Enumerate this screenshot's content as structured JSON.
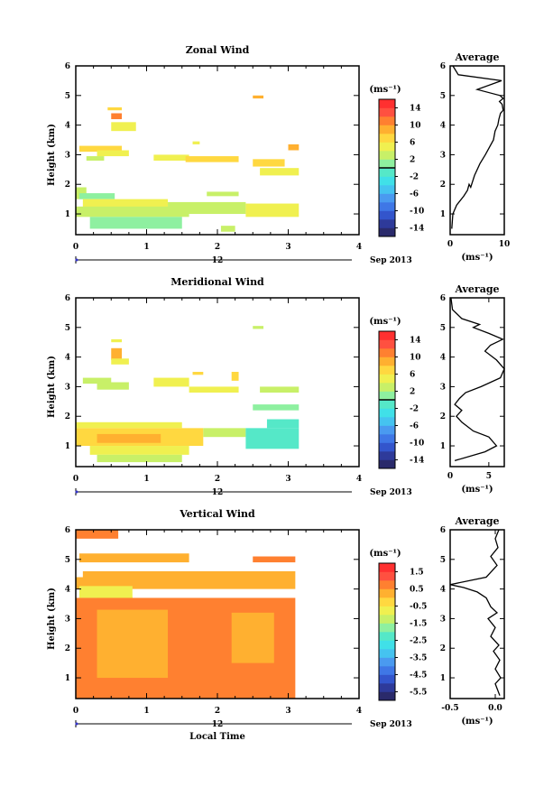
{
  "figure": {
    "panels": [
      {
        "id": "zonal",
        "title": "Zonal Wind",
        "ylabel": "Height (km)",
        "xticks": [
          "0",
          "1",
          "2",
          "3",
          "4"
        ],
        "yticks": [
          "1",
          "2",
          "3",
          "4",
          "5",
          "6"
        ],
        "day_label": "12",
        "date_label": "Sep 2013",
        "xlabel": "",
        "colorbar": {
          "unit": "(ms⁻¹)",
          "ticks": [
            "14",
            "10",
            "6",
            "2",
            "-2",
            "-6",
            "-10",
            "-14"
          ],
          "range": [
            -16,
            16
          ],
          "zero_line": 0,
          "colors": [
            "#2a2a6b",
            "#2e3a9a",
            "#3355cc",
            "#3f77e6",
            "#4a9af0",
            "#45c3f0",
            "#40e0e8",
            "#55e8c8",
            "#8ef0a0",
            "#c8f068",
            "#f0f050",
            "#ffd840",
            "#ffb030",
            "#ff8030",
            "#ff5040",
            "#ff3030"
          ]
        },
        "average": {
          "title": "Average",
          "unit": "(ms⁻¹)",
          "xlim": [
            0,
            10
          ],
          "xticks": [
            "0",
            "10"
          ],
          "yticks": [
            "1",
            "2",
            "3",
            "4",
            "5",
            "6"
          ]
        }
      },
      {
        "id": "meridional",
        "title": "Meridional Wind",
        "ylabel": "Height (km)",
        "xticks": [
          "0",
          "1",
          "2",
          "3",
          "4"
        ],
        "yticks": [
          "1",
          "2",
          "3",
          "4",
          "5",
          "6"
        ],
        "day_label": "12",
        "date_label": "Sep 2013",
        "xlabel": "",
        "colorbar": {
          "unit": "(ms⁻¹)",
          "ticks": [
            "14",
            "10",
            "6",
            "2",
            "-2",
            "-6",
            "-10",
            "-14"
          ],
          "range": [
            -16,
            16
          ],
          "zero_line": 0,
          "colors": [
            "#2a2a6b",
            "#2e3a9a",
            "#3355cc",
            "#3f77e6",
            "#4a9af0",
            "#45c3f0",
            "#40e0e8",
            "#55e8c8",
            "#8ef0a0",
            "#c8f068",
            "#f0f050",
            "#ffd840",
            "#ffb030",
            "#ff8030",
            "#ff5040",
            "#ff3030"
          ]
        },
        "average": {
          "title": "Average",
          "unit": "(ms⁻¹)",
          "xlim": [
            0,
            7
          ],
          "xticks": [
            "0",
            "5"
          ],
          "yticks": [
            "1",
            "2",
            "3",
            "4",
            "5",
            "6"
          ]
        }
      },
      {
        "id": "vertical",
        "title": "Vertical Wind",
        "ylabel": "Height (km)",
        "xticks": [
          "0",
          "1",
          "2",
          "3",
          "4"
        ],
        "yticks": [
          "1",
          "2",
          "3",
          "4",
          "5",
          "6"
        ],
        "day_label": "12",
        "date_label": "Sep 2013",
        "xlabel": "Local Time",
        "colorbar": {
          "unit": "(ms⁻¹)",
          "ticks": [
            "1.5",
            "0.5",
            "-0.5",
            "-1.5",
            "-2.5",
            "-3.5",
            "-4.5",
            "-5.5"
          ],
          "range": [
            -6,
            2
          ],
          "zero_line": null,
          "colors": [
            "#2a2a6b",
            "#2e3a9a",
            "#3355cc",
            "#3f77e6",
            "#4a9af0",
            "#45c3f0",
            "#40e0e8",
            "#55e8c8",
            "#8ef0a0",
            "#c8f068",
            "#f0f050",
            "#ffd840",
            "#ffb030",
            "#ff8030",
            "#ff5040",
            "#ff3030"
          ]
        },
        "average": {
          "title": "Average",
          "unit": "(ms⁻¹)",
          "xlim": [
            -0.5,
            0.1
          ],
          "xticks": [
            "-0.5",
            "0.0"
          ],
          "yticks": [
            "1",
            "2",
            "3",
            "4",
            "5",
            "6"
          ]
        }
      }
    ]
  },
  "chart_data": [
    {
      "type": "heatmap",
      "title": "Zonal Wind",
      "xlabel": "",
      "ylabel": "Height (km)",
      "xlim": [
        0,
        4
      ],
      "ylim": [
        0.3,
        6
      ],
      "colorbar_label": "(ms⁻¹)",
      "colorbar_range": [
        -16,
        16
      ],
      "cells": [
        {
          "x": [
            0.45,
            0.65
          ],
          "y": [
            4.5,
            4.6
          ],
          "v": 6
        },
        {
          "x": [
            0.5,
            0.65
          ],
          "y": [
            4.2,
            4.4
          ],
          "v": 11
        },
        {
          "x": [
            0.5,
            0.85
          ],
          "y": [
            3.8,
            4.1
          ],
          "v": 5
        },
        {
          "x": [
            2.5,
            2.65
          ],
          "y": [
            4.9,
            5.0
          ],
          "v": 9
        },
        {
          "x": [
            3.0,
            3.15
          ],
          "y": [
            3.15,
            3.35
          ],
          "v": 9
        },
        {
          "x": [
            1.65,
            1.75
          ],
          "y": [
            3.35,
            3.45
          ],
          "v": 5
        },
        {
          "x": [
            0.05,
            0.65
          ],
          "y": [
            3.1,
            3.3
          ],
          "v": 6
        },
        {
          "x": [
            0.3,
            0.75
          ],
          "y": [
            2.95,
            3.15
          ],
          "v": 4
        },
        {
          "x": [
            0.15,
            0.4
          ],
          "y": [
            2.8,
            2.95
          ],
          "v": 3
        },
        {
          "x": [
            1.1,
            1.6
          ],
          "y": [
            2.8,
            3.0
          ],
          "v": 4
        },
        {
          "x": [
            1.55,
            2.3
          ],
          "y": [
            2.75,
            2.95
          ],
          "v": 6
        },
        {
          "x": [
            2.5,
            2.95
          ],
          "y": [
            2.6,
            2.85
          ],
          "v": 7
        },
        {
          "x": [
            2.6,
            3.15
          ],
          "y": [
            2.3,
            2.55
          ],
          "v": 5
        },
        {
          "x": [
            0.0,
            0.15
          ],
          "y": [
            1.5,
            1.9
          ],
          "v": 2
        },
        {
          "x": [
            0.05,
            0.55
          ],
          "y": [
            1.5,
            1.7
          ],
          "v": 1
        },
        {
          "x": [
            0.1,
            1.3
          ],
          "y": [
            1.2,
            1.5
          ],
          "v": 4
        },
        {
          "x": [
            0.0,
            1.6
          ],
          "y": [
            0.9,
            1.25
          ],
          "v": 2
        },
        {
          "x": [
            0.2,
            1.5
          ],
          "y": [
            0.5,
            0.9
          ],
          "v": 1
        },
        {
          "x": [
            1.3,
            2.4
          ],
          "y": [
            1.0,
            1.4
          ],
          "v": 3
        },
        {
          "x": [
            1.85,
            2.3
          ],
          "y": [
            1.6,
            1.75
          ],
          "v": 2
        },
        {
          "x": [
            2.4,
            3.15
          ],
          "y": [
            0.9,
            1.35
          ],
          "v": 4
        },
        {
          "x": [
            2.05,
            2.25
          ],
          "y": [
            0.4,
            0.6
          ],
          "v": 2
        }
      ],
      "average_profile": {
        "xlabel": "(ms⁻¹)",
        "xlim": [
          0,
          10
        ],
        "x": [
          0.3,
          0.5,
          1.2,
          2.5,
          3.2,
          3.5,
          3.8,
          4.5,
          5.5,
          6.5,
          8.0,
          8.3,
          8.8,
          9.0,
          9.3,
          9.8,
          9.6,
          9.1,
          9.8,
          9.2,
          5.0,
          9.5,
          1.5,
          0.5
        ],
        "y": [
          0.5,
          1.0,
          1.3,
          1.6,
          1.8,
          2.0,
          1.9,
          2.3,
          2.7,
          3.0,
          3.5,
          3.8,
          4.0,
          4.2,
          4.4,
          4.5,
          4.7,
          4.8,
          4.9,
          5.0,
          5.2,
          5.5,
          5.7,
          6.0
        ]
      }
    },
    {
      "type": "heatmap",
      "title": "Meridional Wind",
      "xlabel": "",
      "ylabel": "Height (km)",
      "xlim": [
        0,
        4
      ],
      "ylim": [
        0.3,
        6
      ],
      "colorbar_label": "(ms⁻¹)",
      "colorbar_range": [
        -16,
        16
      ],
      "cells": [
        {
          "x": [
            0.5,
            0.65
          ],
          "y": [
            4.5,
            4.6
          ],
          "v": 5
        },
        {
          "x": [
            0.5,
            0.65
          ],
          "y": [
            3.9,
            4.3
          ],
          "v": 8
        },
        {
          "x": [
            0.5,
            0.75
          ],
          "y": [
            3.75,
            3.95
          ],
          "v": 4
        },
        {
          "x": [
            2.5,
            2.65
          ],
          "y": [
            4.95,
            5.05
          ],
          "v": 3
        },
        {
          "x": [
            1.65,
            1.8
          ],
          "y": [
            3.4,
            3.5
          ],
          "v": 6
        },
        {
          "x": [
            2.2,
            2.3
          ],
          "y": [
            3.2,
            3.5
          ],
          "v": 6
        },
        {
          "x": [
            0.1,
            0.5
          ],
          "y": [
            3.1,
            3.3
          ],
          "v": 3
        },
        {
          "x": [
            0.3,
            0.75
          ],
          "y": [
            2.9,
            3.15
          ],
          "v": 2
        },
        {
          "x": [
            1.1,
            1.6
          ],
          "y": [
            3.0,
            3.3
          ],
          "v": 4
        },
        {
          "x": [
            1.6,
            2.3
          ],
          "y": [
            2.8,
            3.0
          ],
          "v": 5
        },
        {
          "x": [
            2.6,
            3.15
          ],
          "y": [
            2.8,
            3.0
          ],
          "v": 3
        },
        {
          "x": [
            2.5,
            3.15
          ],
          "y": [
            2.2,
            2.4
          ],
          "v": 1
        },
        {
          "x": [
            0.0,
            1.5
          ],
          "y": [
            1.6,
            1.8
          ],
          "v": 5
        },
        {
          "x": [
            0.0,
            1.8
          ],
          "y": [
            1.0,
            1.6
          ],
          "v": 6
        },
        {
          "x": [
            0.3,
            1.2
          ],
          "y": [
            1.1,
            1.4
          ],
          "v": 9
        },
        {
          "x": [
            0.2,
            1.6
          ],
          "y": [
            0.7,
            1.0
          ],
          "v": 4
        },
        {
          "x": [
            0.3,
            1.5
          ],
          "y": [
            0.45,
            0.7
          ],
          "v": 2
        },
        {
          "x": [
            1.8,
            2.4
          ],
          "y": [
            1.3,
            1.6
          ],
          "v": 2
        },
        {
          "x": [
            2.4,
            3.15
          ],
          "y": [
            0.9,
            1.6
          ],
          "v": -1
        },
        {
          "x": [
            2.7,
            3.15
          ],
          "y": [
            1.6,
            1.9
          ],
          "v": -2
        }
      ],
      "average_profile": {
        "xlabel": "(ms⁻¹)",
        "xlim": [
          0,
          7
        ],
        "x": [
          0.6,
          4.5,
          6.0,
          5.0,
          3.0,
          1.5,
          0.8,
          1.5,
          0.6,
          1.2,
          2.0,
          4.0,
          6.5,
          7.0,
          6.0,
          4.5,
          5.2,
          6.8,
          5.0,
          3.0,
          3.8,
          1.5,
          0.3,
          0.1
        ],
        "y": [
          0.5,
          0.8,
          1.0,
          1.3,
          1.5,
          1.8,
          2.0,
          2.2,
          2.4,
          2.6,
          2.8,
          3.0,
          3.3,
          3.6,
          3.9,
          4.2,
          4.4,
          4.6,
          4.8,
          5.0,
          5.1,
          5.3,
          5.6,
          6.0
        ]
      }
    },
    {
      "type": "heatmap",
      "title": "Vertical Wind",
      "xlabel": "Local Time",
      "ylabel": "Height (km)",
      "xlim": [
        0,
        4
      ],
      "ylim": [
        0.3,
        6
      ],
      "colorbar_label": "(ms⁻¹)",
      "colorbar_range": [
        -6,
        2
      ],
      "cells": [
        {
          "x": [
            0.0,
            0.6
          ],
          "y": [
            5.7,
            6.0
          ],
          "v": 0.7
        },
        {
          "x": [
            0.05,
            1.6
          ],
          "y": [
            4.9,
            5.2
          ],
          "v": 0.2
        },
        {
          "x": [
            0.1,
            3.1
          ],
          "y": [
            4.4,
            4.6
          ],
          "v": 0.3
        },
        {
          "x": [
            2.5,
            3.1
          ],
          "y": [
            4.9,
            5.1
          ],
          "v": 0.6
        },
        {
          "x": [
            0.0,
            3.1
          ],
          "y": [
            4.0,
            4.4
          ],
          "v": 0.1
        },
        {
          "x": [
            0.05,
            0.8
          ],
          "y": [
            3.7,
            4.1
          ],
          "v": -1.0
        },
        {
          "x": [
            0.3,
            0.8
          ],
          "y": [
            3.5,
            3.75
          ],
          "v": -0.7
        },
        {
          "x": [
            0.0,
            3.1
          ],
          "y": [
            0.3,
            3.7
          ],
          "v": 0.6
        },
        {
          "x": [
            0.3,
            1.3
          ],
          "y": [
            1.0,
            3.3
          ],
          "v": 0.3
        },
        {
          "x": [
            2.2,
            2.8
          ],
          "y": [
            1.5,
            3.2
          ],
          "v": 0.3
        }
      ],
      "average_profile": {
        "xlabel": "(ms⁻¹)",
        "xlim": [
          -0.5,
          0.1
        ],
        "x": [
          0.05,
          0.0,
          0.06,
          0.0,
          0.05,
          -0.02,
          0.04,
          -0.05,
          0.0,
          -0.08,
          0.02,
          -0.05,
          -0.1,
          -0.2,
          -0.35,
          -0.5,
          -0.1,
          0.02,
          -0.05,
          0.03,
          0.0,
          0.04
        ],
        "y": [
          0.4,
          0.8,
          1.0,
          1.3,
          1.6,
          1.9,
          2.1,
          2.4,
          2.7,
          3.0,
          3.2,
          3.4,
          3.7,
          3.9,
          4.05,
          4.15,
          4.4,
          4.8,
          5.1,
          5.4,
          5.7,
          6.0
        ]
      }
    }
  ]
}
